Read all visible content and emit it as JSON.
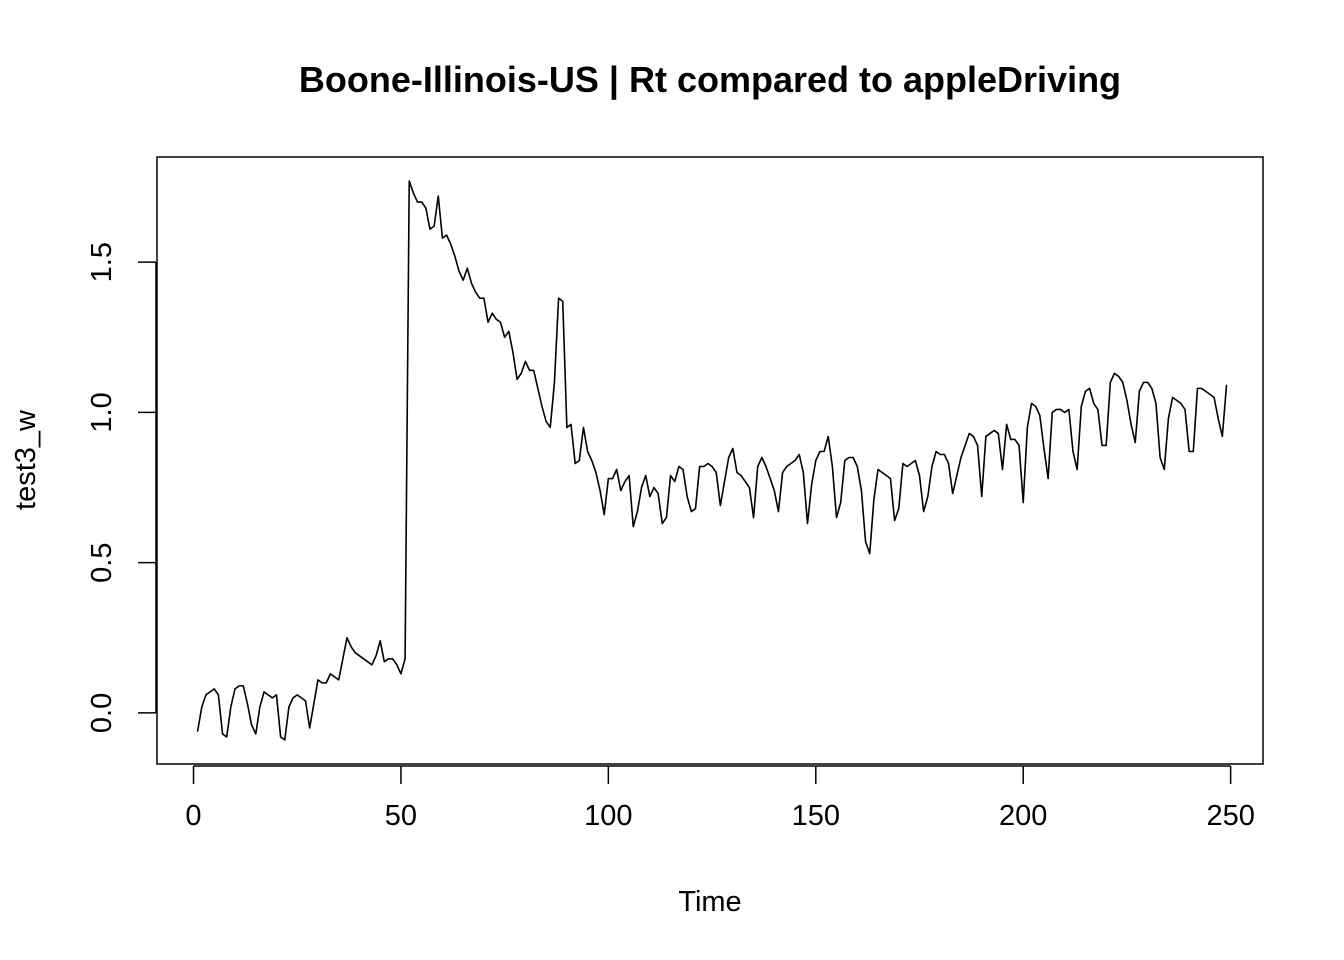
{
  "chart_data": {
    "type": "line",
    "title": "Boone-Illinois-US | Rt compared to appleDriving",
    "xlabel": "Time",
    "ylabel": "test3_w",
    "xlim": [
      -8.8,
      257.8
    ],
    "ylim": [
      -0.17,
      1.85
    ],
    "x_ticks": [
      0,
      50,
      100,
      150,
      200,
      250
    ],
    "x_tick_labels": [
      "0",
      "50",
      "100",
      "150",
      "200",
      "250"
    ],
    "y_ticks": [
      0.0,
      0.5,
      1.0,
      1.5
    ],
    "y_tick_labels": [
      "0.0",
      "0.5",
      "1.0",
      "1.5"
    ],
    "grid": false,
    "legend": "none",
    "line_color": "#000000",
    "series": [
      {
        "x_start": 1,
        "x_step": 1,
        "values": [
          -0.06,
          0.02,
          0.06,
          0.07,
          0.08,
          0.06,
          -0.07,
          -0.08,
          0.02,
          0.08,
          0.09,
          0.09,
          0.03,
          -0.04,
          -0.07,
          0.02,
          0.07,
          0.06,
          0.05,
          0.06,
          -0.08,
          -0.09,
          0.02,
          0.05,
          0.06,
          0.05,
          0.04,
          -0.05,
          0.03,
          0.11,
          0.1,
          0.1,
          0.13,
          0.12,
          0.11,
          0.18,
          0.25,
          0.22,
          0.2,
          0.19,
          0.18,
          0.17,
          0.16,
          0.19,
          0.24,
          0.17,
          0.18,
          0.18,
          0.16,
          0.13,
          0.18,
          1.77,
          1.73,
          1.7,
          1.7,
          1.68,
          1.61,
          1.62,
          1.72,
          1.58,
          1.59,
          1.56,
          1.52,
          1.47,
          1.44,
          1.48,
          1.43,
          1.4,
          1.38,
          1.38,
          1.3,
          1.33,
          1.31,
          1.3,
          1.25,
          1.27,
          1.2,
          1.11,
          1.13,
          1.17,
          1.14,
          1.14,
          1.08,
          1.02,
          0.97,
          0.95,
          1.1,
          1.38,
          1.37,
          0.95,
          0.96,
          0.83,
          0.84,
          0.95,
          0.87,
          0.84,
          0.8,
          0.74,
          0.66,
          0.78,
          0.78,
          0.81,
          0.74,
          0.77,
          0.79,
          0.62,
          0.67,
          0.75,
          0.79,
          0.72,
          0.75,
          0.73,
          0.63,
          0.65,
          0.79,
          0.77,
          0.82,
          0.81,
          0.72,
          0.67,
          0.68,
          0.82,
          0.82,
          0.83,
          0.82,
          0.8,
          0.69,
          0.77,
          0.85,
          0.88,
          0.8,
          0.79,
          0.77,
          0.75,
          0.65,
          0.82,
          0.85,
          0.82,
          0.78,
          0.74,
          0.67,
          0.8,
          0.82,
          0.83,
          0.84,
          0.86,
          0.8,
          0.63,
          0.76,
          0.84,
          0.87,
          0.87,
          0.92,
          0.82,
          0.65,
          0.7,
          0.84,
          0.85,
          0.85,
          0.82,
          0.74,
          0.57,
          0.53,
          0.71,
          0.81,
          0.8,
          0.79,
          0.78,
          0.64,
          0.68,
          0.83,
          0.82,
          0.83,
          0.84,
          0.79,
          0.67,
          0.72,
          0.82,
          0.87,
          0.86,
          0.86,
          0.83,
          0.73,
          0.79,
          0.85,
          0.89,
          0.93,
          0.92,
          0.89,
          0.72,
          0.92,
          0.93,
          0.94,
          0.93,
          0.81,
          0.96,
          0.91,
          0.91,
          0.89,
          0.7,
          0.95,
          1.03,
          1.02,
          0.99,
          0.88,
          0.78,
          1.0,
          1.01,
          1.01,
          1.0,
          1.01,
          0.87,
          0.81,
          1.02,
          1.07,
          1.08,
          1.03,
          1.01,
          0.89,
          0.89,
          1.1,
          1.13,
          1.12,
          1.1,
          1.04,
          0.96,
          0.9,
          1.07,
          1.1,
          1.1,
          1.08,
          1.03,
          0.85,
          0.81,
          0.98,
          1.05,
          1.04,
          1.03,
          1.01,
          0.87,
          0.87,
          1.08,
          1.08,
          1.07,
          1.06,
          1.05,
          0.98,
          0.92,
          1.09
        ]
      }
    ]
  }
}
